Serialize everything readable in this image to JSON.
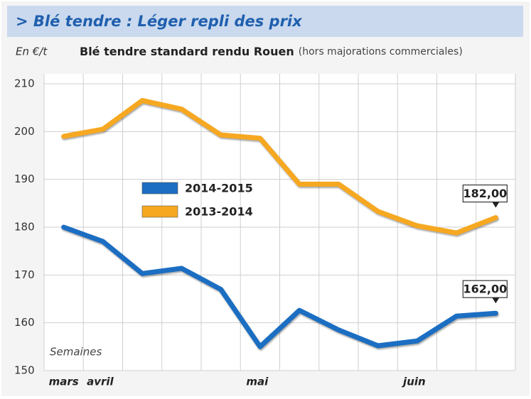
{
  "chart_data": {
    "type": "line",
    "title": "> Blé tendre : Léger repli des prix",
    "unit_label": "En €/t",
    "subtitle": "Blé tendre standard rendu Rouen",
    "subtitle_note": "(hors majorations commerciales)",
    "x_label": "Semaines",
    "categories": [
      "mars",
      "avril",
      null,
      null,
      null,
      "mai",
      null,
      null,
      null,
      "juin",
      null,
      null
    ],
    "series": [
      {
        "name": "2014-2015",
        "color": "#1b6ec2",
        "values": [
          180,
          177,
          170.3,
          171.4,
          167,
          155,
          162.6,
          158.5,
          155.2,
          156.2,
          161.4,
          162
        ],
        "value_labels": [
          null,
          null,
          null,
          null,
          null,
          null,
          null,
          null,
          null,
          null,
          null,
          "162,00"
        ]
      },
      {
        "name": "2013-2014",
        "color": "#f6a821",
        "values": [
          199,
          200.5,
          206.5,
          204.7,
          199.3,
          198.6,
          189,
          189,
          183.3,
          180.3,
          178.8,
          182
        ],
        "value_labels": [
          null,
          null,
          null,
          null,
          null,
          null,
          null,
          null,
          null,
          null,
          null,
          "182,00"
        ]
      }
    ],
    "ylim": [
      150,
      210
    ],
    "yticks": [
      150,
      160,
      170,
      180,
      190,
      200,
      210
    ],
    "grid": true,
    "legend": "center-left"
  }
}
